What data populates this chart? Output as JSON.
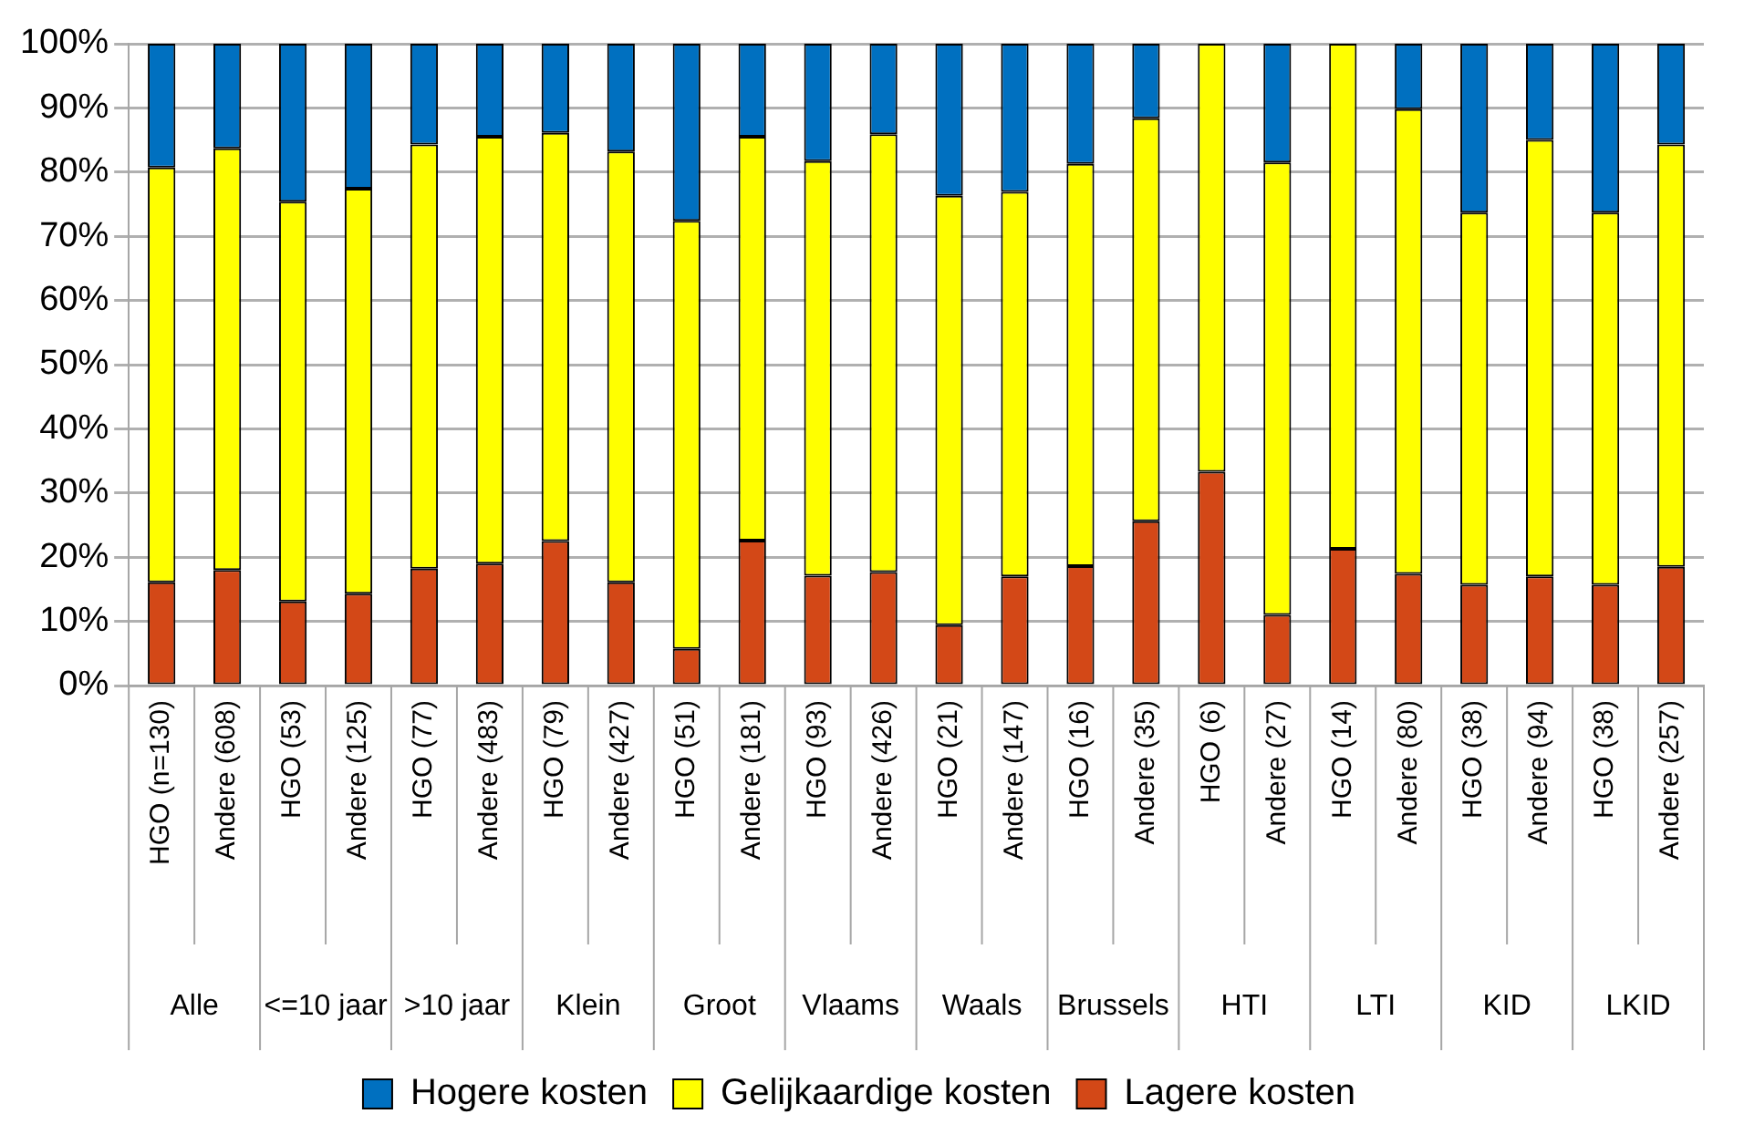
{
  "chart_data": {
    "type": "bar",
    "stacked": true,
    "categories": [
      "HGO (n=130)",
      "Andere (608)",
      "HGO (53)",
      "Andere (125)",
      "HGO (77)",
      "Andere (483)",
      "HGO (79)",
      "Andere (427)",
      "HGO (51)",
      "Andere (181)",
      "HGO (93)",
      "Andere (426)",
      "HGO (21)",
      "Andere (147)",
      "HGO (16)",
      "Andere (35)",
      "HGO (6)",
      "Andere (27)",
      "HGO (14)",
      "Andere (80)",
      "HGO (38)",
      "Andere (94)",
      "HGO (38)",
      "Andere (257)"
    ],
    "annotations": [
      "Alle",
      "<=10 jaar",
      ">10 jaar",
      "Klein",
      "Groot",
      "Vlaams",
      "Waals",
      "Brussels",
      "HTI",
      "LTI",
      "KID",
      "LKID"
    ],
    "series": [
      {
        "name": "Lagere kosten",
        "color": "#d34817",
        "values": [
          16.1,
          18.0,
          13.1,
          14.3,
          18.2,
          19.0,
          22.5,
          16.1,
          5.7,
          22.6,
          17.1,
          17.7,
          9.4,
          17.0,
          18.6,
          25.6,
          33.3,
          11.0,
          21.3,
          17.4,
          15.7,
          17.0,
          15.7,
          18.5
        ]
      },
      {
        "name": "Gelijkaardige kosten",
        "color": "#ffff00",
        "values": [
          64.6,
          65.7,
          62.3,
          63.1,
          66.1,
          66.5,
          63.6,
          67.1,
          66.7,
          62.9,
          64.6,
          68.2,
          66.9,
          59.9,
          62.7,
          62.8,
          66.7,
          70.5,
          78.7,
          72.4,
          58.0,
          68.0,
          58.0,
          65.8
        ]
      },
      {
        "name": "Hogere kosten",
        "color": "#0070c0",
        "values": [
          19.3,
          16.3,
          24.6,
          22.6,
          15.7,
          14.5,
          13.9,
          16.8,
          27.6,
          14.5,
          18.3,
          14.1,
          23.7,
          23.1,
          18.7,
          11.6,
          0,
          18.5,
          0,
          10.2,
          26.3,
          15.0,
          26.3,
          15.7
        ]
      }
    ],
    "ylim": [
      0,
      100
    ],
    "yticks": [
      {
        "value": 0,
        "label": "0%"
      },
      {
        "value": 10,
        "label": "10%"
      },
      {
        "value": 20,
        "label": "20%"
      },
      {
        "value": 30,
        "label": "30%"
      },
      {
        "value": 40,
        "label": "40%"
      },
      {
        "value": 50,
        "label": "50%"
      },
      {
        "value": 60,
        "label": "60%"
      },
      {
        "value": 70,
        "label": "70%"
      },
      {
        "value": 80,
        "label": "80%"
      },
      {
        "value": 90,
        "label": "90%"
      },
      {
        "value": 100,
        "label": "100%"
      }
    ],
    "grid": "y",
    "legend": "bottom"
  }
}
